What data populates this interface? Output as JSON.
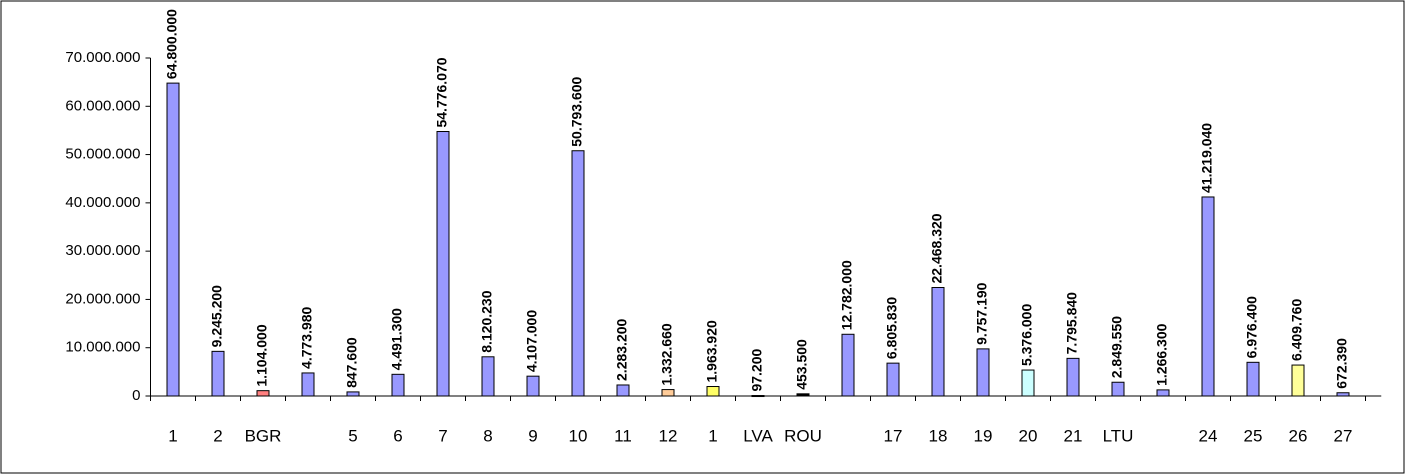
{
  "chart_data": {
    "type": "bar",
    "categories": [
      "1",
      "2",
      "BGR",
      null,
      "5",
      "6",
      "7",
      "8",
      "9",
      "10",
      "11",
      "12",
      "1",
      "LVA",
      "ROU",
      null,
      "17",
      "18",
      "19",
      "20",
      "21",
      "LTU",
      null,
      "24",
      "25",
      "26",
      "27"
    ],
    "values": [
      64800000,
      9245200,
      1104000,
      4773980,
      847600,
      4491300,
      54776070,
      8120230,
      4107000,
      50793600,
      2283200,
      1332660,
      1963920,
      97200,
      453500,
      12782000,
      6805830,
      22468320,
      9757190,
      5376000,
      7795840,
      2849550,
      1266300,
      41219040,
      6976400,
      6409760,
      672390
    ],
    "value_labels": [
      "64.800.000",
      "9.245.200",
      "1.104.000",
      "4.773.980",
      "847.600",
      "4.491.300",
      "54.776.070",
      "8.120.230",
      "4.107.000",
      "50.793.600",
      "2.283.200",
      "1.332.660",
      "1.963.920",
      "97.200",
      "453.500",
      "12.782.000",
      "6.805.830",
      "22.468.320",
      "9.757.190",
      "5.376.000",
      "7.795.840",
      "2.849.550",
      "1.266.300",
      "41.219.040",
      "6.976.400",
      "6.409.760",
      "672.390"
    ],
    "colors": [
      "#9999ff",
      "#9999ff",
      "#ff8080",
      "#9999ff",
      "#9999ff",
      "#9999ff",
      "#9999ff",
      "#9999ff",
      "#9999ff",
      "#9999ff",
      "#9999ff",
      "#ffcc99",
      "#ffff66",
      "#000000",
      "#000000",
      "#9999ff",
      "#9999ff",
      "#9999ff",
      "#9999ff",
      "#ccffff",
      "#9999ff",
      "#9999ff",
      "#9999ff",
      "#9999ff",
      "#9999ff",
      "#ffff99",
      "#9999ff"
    ],
    "ylim": [
      0,
      70000000
    ],
    "yticks": [
      {
        "value": 0,
        "label": "0"
      },
      {
        "value": 10000000,
        "label": "10.000.000"
      },
      {
        "value": 20000000,
        "label": "20.000.000"
      },
      {
        "value": 30000000,
        "label": "30.000.000"
      },
      {
        "value": 40000000,
        "label": "40.000.000"
      },
      {
        "value": 50000000,
        "label": "50.000.000"
      },
      {
        "value": 60000000,
        "label": "60.000.000"
      },
      {
        "value": 70000000,
        "label": "70.000.000"
      }
    ]
  }
}
